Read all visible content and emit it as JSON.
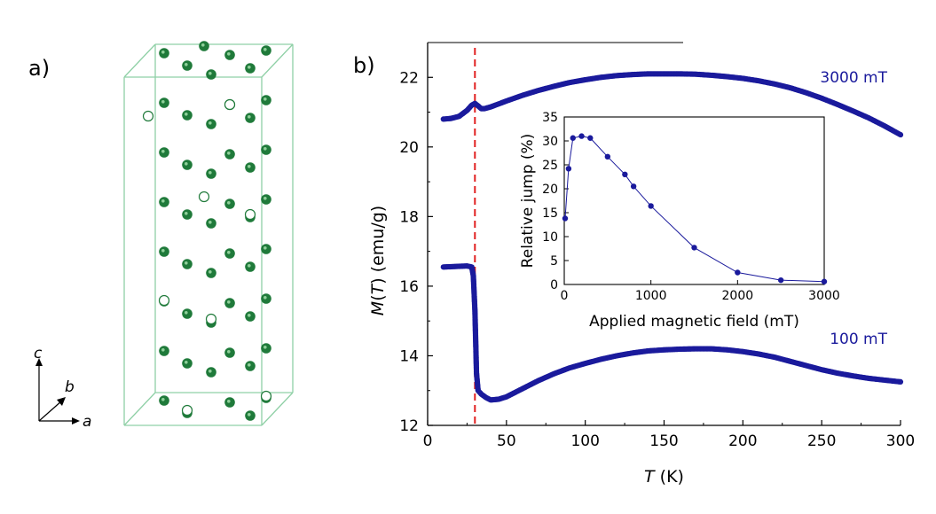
{
  "panel_a": {
    "label": "a)",
    "axes": {
      "c": "c",
      "b": "b",
      "a": "a"
    },
    "atom_color": "#1f7a3a",
    "cell_color": "#8fd0a6"
  },
  "panel_b": {
    "label": "b)"
  },
  "chart_data": [
    {
      "name": "main",
      "type": "scatter",
      "xlabel_parts": [
        "T",
        " (K)"
      ],
      "ylabel_parts": [
        "M(",
        "T",
        ") (emu/g)"
      ],
      "xlim": [
        0,
        300
      ],
      "ylim": [
        12,
        23
      ],
      "xticks": [
        0,
        50,
        100,
        150,
        200,
        250,
        300
      ],
      "yticks": [
        12,
        14,
        16,
        18,
        20,
        22
      ],
      "marker_color": "#1a1a9c",
      "vline": {
        "x": 30,
        "color": "#e02020",
        "style": "dashed"
      },
      "series": [
        {
          "name": "3000 mT",
          "points": [
            [
              10,
              20.8
            ],
            [
              15,
              20.82
            ],
            [
              20,
              20.88
            ],
            [
              25,
              21.05
            ],
            [
              28,
              21.2
            ],
            [
              30,
              21.25
            ],
            [
              32,
              21.18
            ],
            [
              34,
              21.1
            ],
            [
              36,
              21.1
            ],
            [
              40,
              21.15
            ],
            [
              50,
              21.32
            ],
            [
              60,
              21.48
            ],
            [
              70,
              21.62
            ],
            [
              80,
              21.74
            ],
            [
              90,
              21.85
            ],
            [
              100,
              21.93
            ],
            [
              110,
              22.0
            ],
            [
              120,
              22.05
            ],
            [
              130,
              22.08
            ],
            [
              140,
              22.1
            ],
            [
              150,
              22.1
            ],
            [
              160,
              22.1
            ],
            [
              170,
              22.09
            ],
            [
              180,
              22.06
            ],
            [
              190,
              22.02
            ],
            [
              200,
              21.97
            ],
            [
              210,
              21.9
            ],
            [
              220,
              21.81
            ],
            [
              230,
              21.7
            ],
            [
              240,
              21.56
            ],
            [
              250,
              21.4
            ],
            [
              260,
              21.22
            ],
            [
              270,
              21.03
            ],
            [
              280,
              20.83
            ],
            [
              290,
              20.6
            ],
            [
              300,
              20.35
            ]
          ]
        },
        {
          "name": "100 mT",
          "points": [
            [
              10,
              16.55
            ],
            [
              15,
              16.56
            ],
            [
              20,
              16.57
            ],
            [
              25,
              16.58
            ],
            [
              28,
              16.55
            ],
            [
              29,
              16.3
            ],
            [
              30,
              15.3
            ],
            [
              31,
              13.5
            ],
            [
              32,
              13.0
            ],
            [
              34,
              12.9
            ],
            [
              37,
              12.8
            ],
            [
              40,
              12.73
            ],
            [
              45,
              12.75
            ],
            [
              50,
              12.82
            ],
            [
              60,
              13.05
            ],
            [
              70,
              13.28
            ],
            [
              80,
              13.48
            ],
            [
              90,
              13.65
            ],
            [
              100,
              13.78
            ],
            [
              110,
              13.9
            ],
            [
              120,
              14.0
            ],
            [
              130,
              14.08
            ],
            [
              140,
              14.14
            ],
            [
              150,
              14.17
            ],
            [
              160,
              14.19
            ],
            [
              170,
              14.2
            ],
            [
              180,
              14.2
            ],
            [
              190,
              14.17
            ],
            [
              200,
              14.12
            ],
            [
              210,
              14.05
            ],
            [
              220,
              13.96
            ],
            [
              230,
              13.84
            ],
            [
              240,
              13.72
            ],
            [
              250,
              13.6
            ],
            [
              260,
              13.5
            ],
            [
              270,
              13.42
            ],
            [
              280,
              13.35
            ],
            [
              290,
              13.3
            ],
            [
              300,
              13.25
            ]
          ]
        }
      ],
      "labels": [
        {
          "text": "3000 mT"
        },
        {
          "text": "100 mT"
        }
      ]
    },
    {
      "name": "inset",
      "type": "line",
      "xlabel": "Applied magnetic field (mT)",
      "ylabel": "Relative jump (%)",
      "xlim": [
        0,
        3000
      ],
      "ylim": [
        0,
        35
      ],
      "xticks": [
        0,
        1000,
        2000,
        3000
      ],
      "yticks": [
        0,
        5,
        10,
        15,
        20,
        25,
        30,
        35
      ],
      "color": "#1a1a9c",
      "x": [
        10,
        50,
        100,
        200,
        300,
        500,
        700,
        800,
        1000,
        1500,
        2000,
        2500,
        3000
      ],
      "y": [
        13.8,
        24.2,
        30.6,
        31.0,
        30.6,
        26.7,
        23.0,
        20.5,
        16.4,
        7.7,
        2.5,
        0.9,
        0.6
      ]
    }
  ]
}
